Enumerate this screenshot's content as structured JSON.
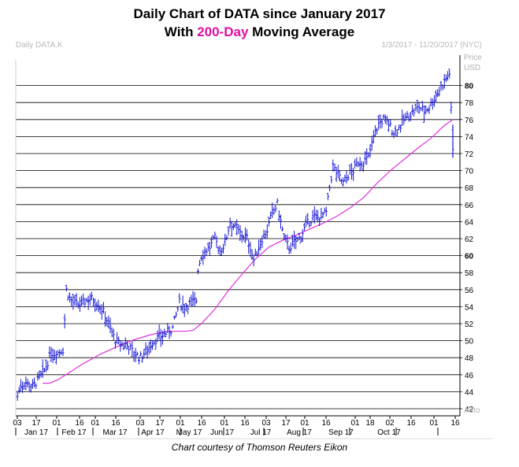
{
  "header": {
    "title_line1": "Daily Chart of DATA since January 2017",
    "title_line2_pre": "With ",
    "title_line2_highlight": "200-Day",
    "title_line2_post": " Moving Average",
    "symbol": "Daily DATA.K",
    "date_range": "1/3/2017 - 11/20/2017 (NYC)"
  },
  "caption": "Chart courtesy of Thomson Reuters Eikon",
  "colors": {
    "price_bars": "#1515d6",
    "moving_average": "#dd33dd",
    "gridlines": "#000000",
    "highlight": "#e0109f"
  },
  "chart_data": {
    "type": "line",
    "title": "Daily Chart of DATA since January 2017 With 200-Day Moving Average",
    "y_axis_label": "Price USD",
    "y_axis_note": "Auto",
    "ylim": [
      40.5,
      82.5
    ],
    "y_ticks": [
      42,
      44,
      46,
      48,
      50,
      52,
      54,
      56,
      58,
      60,
      62,
      64,
      66,
      68,
      70,
      72,
      74,
      76,
      78,
      80
    ],
    "y_ticks_bold": [
      60,
      80
    ],
    "grid": true,
    "x_day_ticks": [
      "03",
      "17",
      "01",
      "16",
      "01",
      "16",
      "03",
      "17",
      "01",
      "16",
      "01",
      "16",
      "03",
      "17",
      "01",
      "16",
      "01",
      "18",
      "02",
      "16",
      "01",
      "16"
    ],
    "x_months": [
      "Jan 17",
      "Feb 17",
      "Mar 17",
      "Apr 17",
      "May 17",
      "Jun 17",
      "Jul 17",
      "Aug 17",
      "Sep 17",
      "Oct 17"
    ],
    "series": [
      {
        "name": "DATA daily price",
        "style": "ohlc_bars",
        "values": [
          [
            1,
            43.5
          ],
          [
            3,
            44.8
          ],
          [
            6,
            45.1
          ],
          [
            10,
            44.6
          ],
          [
            14,
            45.6
          ],
          [
            17,
            46.5
          ],
          [
            21,
            48.6
          ],
          [
            24,
            48.5
          ],
          [
            28,
            49.0
          ],
          [
            30,
            56.0
          ],
          [
            32,
            55.0
          ],
          [
            34,
            54.5
          ],
          [
            37,
            54.2
          ],
          [
            40,
            54.5
          ],
          [
            44,
            55.0
          ],
          [
            48,
            54.5
          ],
          [
            50,
            54.0
          ],
          [
            53,
            53.0
          ],
          [
            56,
            51.5
          ],
          [
            59,
            50.0
          ],
          [
            62,
            49.5
          ],
          [
            66,
            49.6
          ],
          [
            70,
            48.5
          ],
          [
            74,
            48.0
          ],
          [
            78,
            49.0
          ],
          [
            82,
            50.0
          ],
          [
            86,
            50.5
          ],
          [
            90,
            51.0
          ],
          [
            93,
            51.5
          ],
          [
            95,
            53.0
          ],
          [
            97,
            54.5
          ],
          [
            100,
            54.0
          ],
          [
            104,
            54.5
          ],
          [
            107,
            54.8
          ],
          [
            108,
            58.5
          ],
          [
            110,
            60.0
          ],
          [
            112,
            60.5
          ],
          [
            115,
            61.0
          ],
          [
            118,
            62.0
          ],
          [
            121,
            60.5
          ],
          [
            124,
            61.5
          ],
          [
            127,
            64.0
          ],
          [
            131,
            63.0
          ],
          [
            134,
            62.5
          ],
          [
            137,
            62.0
          ],
          [
            139,
            61.0
          ],
          [
            141,
            59.5
          ],
          [
            143,
            60.5
          ],
          [
            146,
            62.0
          ],
          [
            149,
            63.0
          ],
          [
            152,
            65.0
          ],
          [
            155,
            66.0
          ],
          [
            157,
            64.0
          ],
          [
            159,
            62.0
          ],
          [
            162,
            61.0
          ],
          [
            165,
            61.5
          ],
          [
            168,
            62.0
          ],
          [
            172,
            63.5
          ],
          [
            176,
            64.5
          ],
          [
            180,
            64.5
          ],
          [
            184,
            65.0
          ],
          [
            186,
            68.0
          ],
          [
            188,
            70.5
          ],
          [
            191,
            69.5
          ],
          [
            194,
            68.5
          ],
          [
            197,
            69.5
          ],
          [
            200,
            70.0
          ],
          [
            203,
            71.0
          ],
          [
            206,
            71.0
          ],
          [
            209,
            71.5
          ],
          [
            212,
            74.0
          ],
          [
            215,
            75.5
          ],
          [
            218,
            76.0
          ],
          [
            221,
            75.5
          ],
          [
            224,
            74.5
          ],
          [
            227,
            75.0
          ],
          [
            230,
            76.0
          ],
          [
            233,
            76.5
          ],
          [
            236,
            77.0
          ],
          [
            239,
            77.5
          ],
          [
            242,
            77.0
          ],
          [
            245,
            77.5
          ],
          [
            248,
            78.5
          ],
          [
            251,
            79.5
          ],
          [
            254,
            80.5
          ],
          [
            257,
            81.5
          ],
          [
            259,
            72.5
          ]
        ]
      },
      {
        "name": "200-Day Moving Average",
        "style": "line",
        "values": [
          [
            16,
            45.0
          ],
          [
            20,
            45.0
          ],
          [
            25,
            45.4
          ],
          [
            32,
            46.3
          ],
          [
            40,
            47.3
          ],
          [
            50,
            48.4
          ],
          [
            60,
            49.3
          ],
          [
            70,
            50.1
          ],
          [
            80,
            50.7
          ],
          [
            90,
            51.1
          ],
          [
            100,
            51.1
          ],
          [
            105,
            51.2
          ],
          [
            110,
            52.0
          ],
          [
            118,
            53.7
          ],
          [
            126,
            55.9
          ],
          [
            134,
            57.8
          ],
          [
            142,
            59.6
          ],
          [
            150,
            61.0
          ],
          [
            158,
            61.8
          ],
          [
            166,
            62.4
          ],
          [
            174,
            63.1
          ],
          [
            182,
            63.8
          ],
          [
            190,
            64.6
          ],
          [
            198,
            65.6
          ],
          [
            206,
            66.8
          ],
          [
            214,
            68.5
          ],
          [
            222,
            70.0
          ],
          [
            230,
            71.3
          ],
          [
            238,
            72.6
          ],
          [
            246,
            73.8
          ],
          [
            254,
            75.3
          ],
          [
            259,
            76.0
          ]
        ]
      }
    ]
  }
}
